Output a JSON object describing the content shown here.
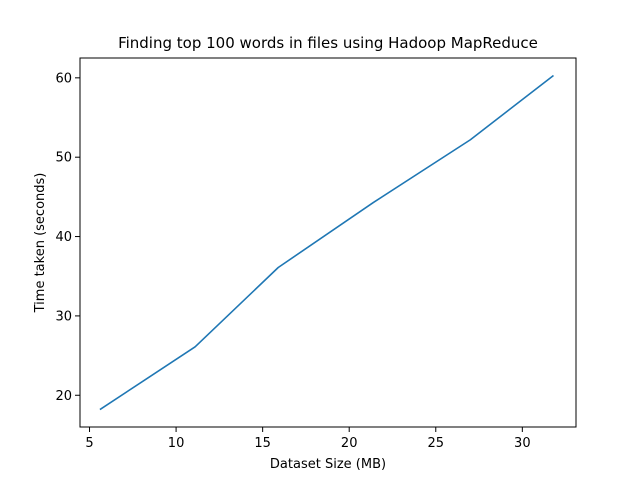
{
  "chart_data": {
    "type": "line",
    "title": "Finding top 100 words in files using Hadoop MapReduce",
    "xlabel": "Dataset Size (MB)",
    "ylabel": "Time taken (seconds)",
    "xlim": [
      4.45,
      33.1
    ],
    "ylim": [
      16.0,
      62.5
    ],
    "xticks": [
      5,
      10,
      15,
      20,
      25,
      30
    ],
    "yticks": [
      20,
      30,
      40,
      50,
      60
    ],
    "grid": false,
    "legend": "none",
    "series": [
      {
        "color": "#1f77b4",
        "x": [
          5.6,
          11.1,
          15.9,
          21.4,
          27.0,
          31.8
        ],
        "y": [
          18.2,
          26.1,
          36.1,
          44.3,
          52.2,
          60.3
        ]
      }
    ]
  }
}
